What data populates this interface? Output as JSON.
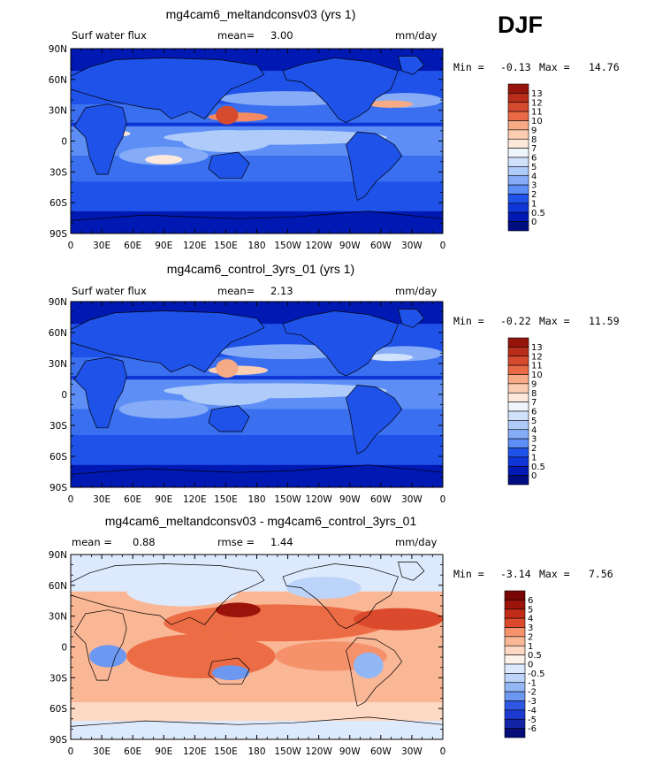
{
  "season": "DJF",
  "units": "mm/day",
  "x_ticks": [
    "0",
    "30E",
    "60E",
    "90E",
    "120E",
    "150E",
    "180",
    "150W",
    "120W",
    "90W",
    "60W",
    "30W",
    "0"
  ],
  "y_ticks": [
    "90N",
    "60N",
    "30N",
    "0",
    "30S",
    "60S",
    "90S"
  ],
  "colors": {
    "blue_palette": [
      "#000d80",
      "#0019b3",
      "#0f36d6",
      "#1f52e8",
      "#3a6ff0",
      "#5d8ef5",
      "#86acf7",
      "#aecbf9",
      "#d0e2fb",
      "#eef5fd",
      "#fde9dc",
      "#fbcdb1",
      "#f7aa86",
      "#f38a63",
      "#ea6a45",
      "#d64a2e",
      "#b92d1b",
      "#95150c"
    ],
    "diff_palette": [
      "#070e7a",
      "#1325a6",
      "#1d3ad0",
      "#2e58e4",
      "#4a78ef",
      "#6d98f2",
      "#93b7f5",
      "#bcd4f9",
      "#dde9fc",
      "#fdf2ea",
      "#fdd8c2",
      "#f9b796",
      "#f5926b",
      "#ec6c45",
      "#db4a2c",
      "#c02c17",
      "#9c130b",
      "#7a0505"
    ]
  },
  "chart_data": [
    {
      "type": "heatmap",
      "title": "mg4cam6_meltandconsv03 (yrs 1)",
      "variable": "Surf water flux",
      "stat_label": "mean=",
      "stat_value": "3.00",
      "units": "mm/day",
      "min_label": "Min =",
      "min_value": "-0.13",
      "max_label": "Max =",
      "max_value": "14.76",
      "x_range": [
        "0",
        "0"
      ],
      "y_range": [
        "90S",
        "90N"
      ],
      "colorbar_levels": [
        "13",
        "12",
        "11",
        "10",
        "9",
        "8",
        "7",
        "6",
        "5",
        "4",
        "3",
        "2",
        "1",
        "0.5",
        "0"
      ]
    },
    {
      "type": "heatmap",
      "title": "mg4cam6_control_3yrs_01 (yrs 1)",
      "variable": "Surf water flux",
      "stat_label": "mean=",
      "stat_value": "2.13",
      "units": "mm/day",
      "min_label": "Min =",
      "min_value": "-0.22",
      "max_label": "Max =",
      "max_value": "11.59",
      "x_range": [
        "0",
        "0"
      ],
      "y_range": [
        "90S",
        "90N"
      ],
      "colorbar_levels": [
        "13",
        "12",
        "11",
        "10",
        "9",
        "8",
        "7",
        "6",
        "5",
        "4",
        "3",
        "2",
        "1",
        "0.5",
        "0"
      ]
    },
    {
      "type": "heatmap",
      "title": "mg4cam6_meltandconsv03 - mg4cam6_control_3yrs_01",
      "stat_label": "mean =",
      "stat_value": "0.88",
      "stat2_label": "rmse =",
      "stat2_value": "1.44",
      "units": "mm/day",
      "min_label": "Min =",
      "min_value": "-3.14",
      "max_label": "Max =",
      "max_value": "7.56",
      "x_range": [
        "0",
        "0"
      ],
      "y_range": [
        "90S",
        "90N"
      ],
      "colorbar_levels": [
        "6",
        "5",
        "4",
        "3",
        "2",
        "1",
        "0.5",
        "0",
        "-0.5",
        "-1",
        "-2",
        "-3",
        "-4",
        "-5",
        "-6"
      ]
    }
  ]
}
